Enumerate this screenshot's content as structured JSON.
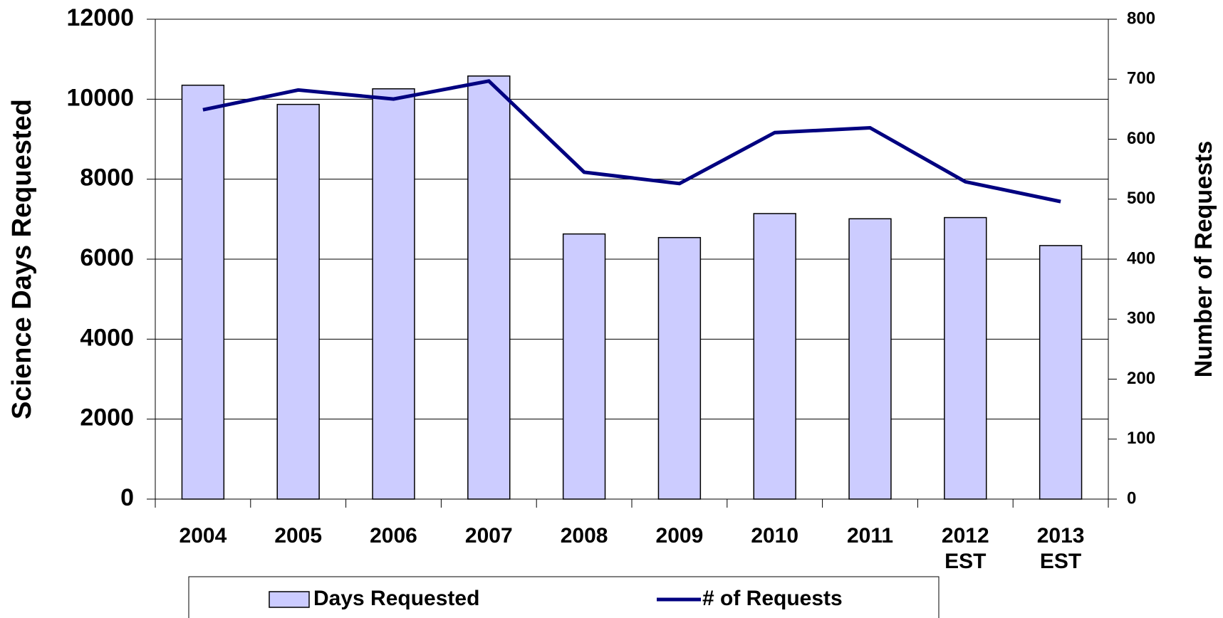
{
  "chart_data": {
    "type": "bar",
    "categories": [
      "2004",
      "2005",
      "2006",
      "2007",
      "2008",
      "2009",
      "2010",
      "2011",
      "2012\nEST",
      "2013\nEST"
    ],
    "series": [
      {
        "name": "Days Requested",
        "type": "bar",
        "color": "#ccccff",
        "values": [
          10350,
          9870,
          10260,
          10580,
          6630,
          6540,
          7140,
          7010,
          7040,
          6340
        ]
      },
      {
        "name": "# of Requests",
        "type": "line",
        "axis": "y2",
        "color": "#000080",
        "values": [
          649,
          682,
          667,
          697,
          545,
          526,
          611,
          619,
          529,
          496
        ]
      }
    ],
    "ylabel": "Science Days Requested",
    "y2label": "Number of Requests",
    "ylim": [
      0,
      12000
    ],
    "yticks": [
      0,
      2000,
      4000,
      6000,
      8000,
      10000,
      12000
    ],
    "y2lim": [
      0,
      800
    ],
    "y2ticks": [
      0,
      100,
      200,
      300,
      400,
      500,
      600,
      700,
      800
    ],
    "grid": true,
    "legend": "bottom"
  }
}
